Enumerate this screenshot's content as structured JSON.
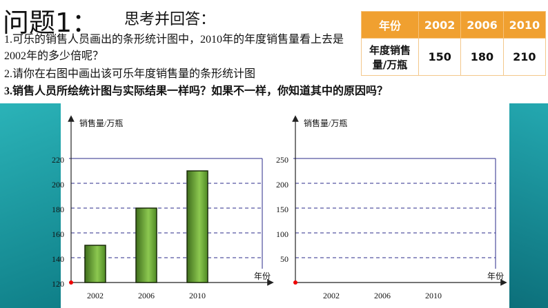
{
  "title": "问题1：",
  "subtitle": "思考并回答：",
  "questions": [
    "1.可乐的销售人员画出的条形统计图中，2010年的年度销售量看上去是2002年的多少倍呢？",
    "2.请你在右图中画出该可乐年度销售量的条形统计图",
    "3.销售人员所绘统计图与实际结果一样吗？如果不一样，你知道其中的原因吗？"
  ],
  "table": {
    "header": [
      "年份",
      "2002",
      "2006",
      "2010"
    ],
    "rows": [
      [
        "年度销售量/万瓶",
        150,
        180,
        210
      ]
    ]
  },
  "chart_data": [
    {
      "type": "bar",
      "y_label": "销售量/万瓶",
      "x_label": "年份",
      "categories": [
        "2002",
        "2006",
        "2010"
      ],
      "values": [
        150,
        180,
        210
      ],
      "color": "#5e9a2c",
      "ylim": [
        120,
        220
      ],
      "yticks": [
        120,
        140,
        160,
        180,
        200,
        220
      ],
      "grid": true
    },
    {
      "type": "bar",
      "y_label": "销售量/万瓶",
      "x_label": "年份",
      "categories": [
        "2002",
        "2006",
        "2010"
      ],
      "ylim": [
        0,
        250
      ],
      "yticks": [
        50,
        100,
        150,
        200,
        250
      ],
      "grid": true
    }
  ]
}
